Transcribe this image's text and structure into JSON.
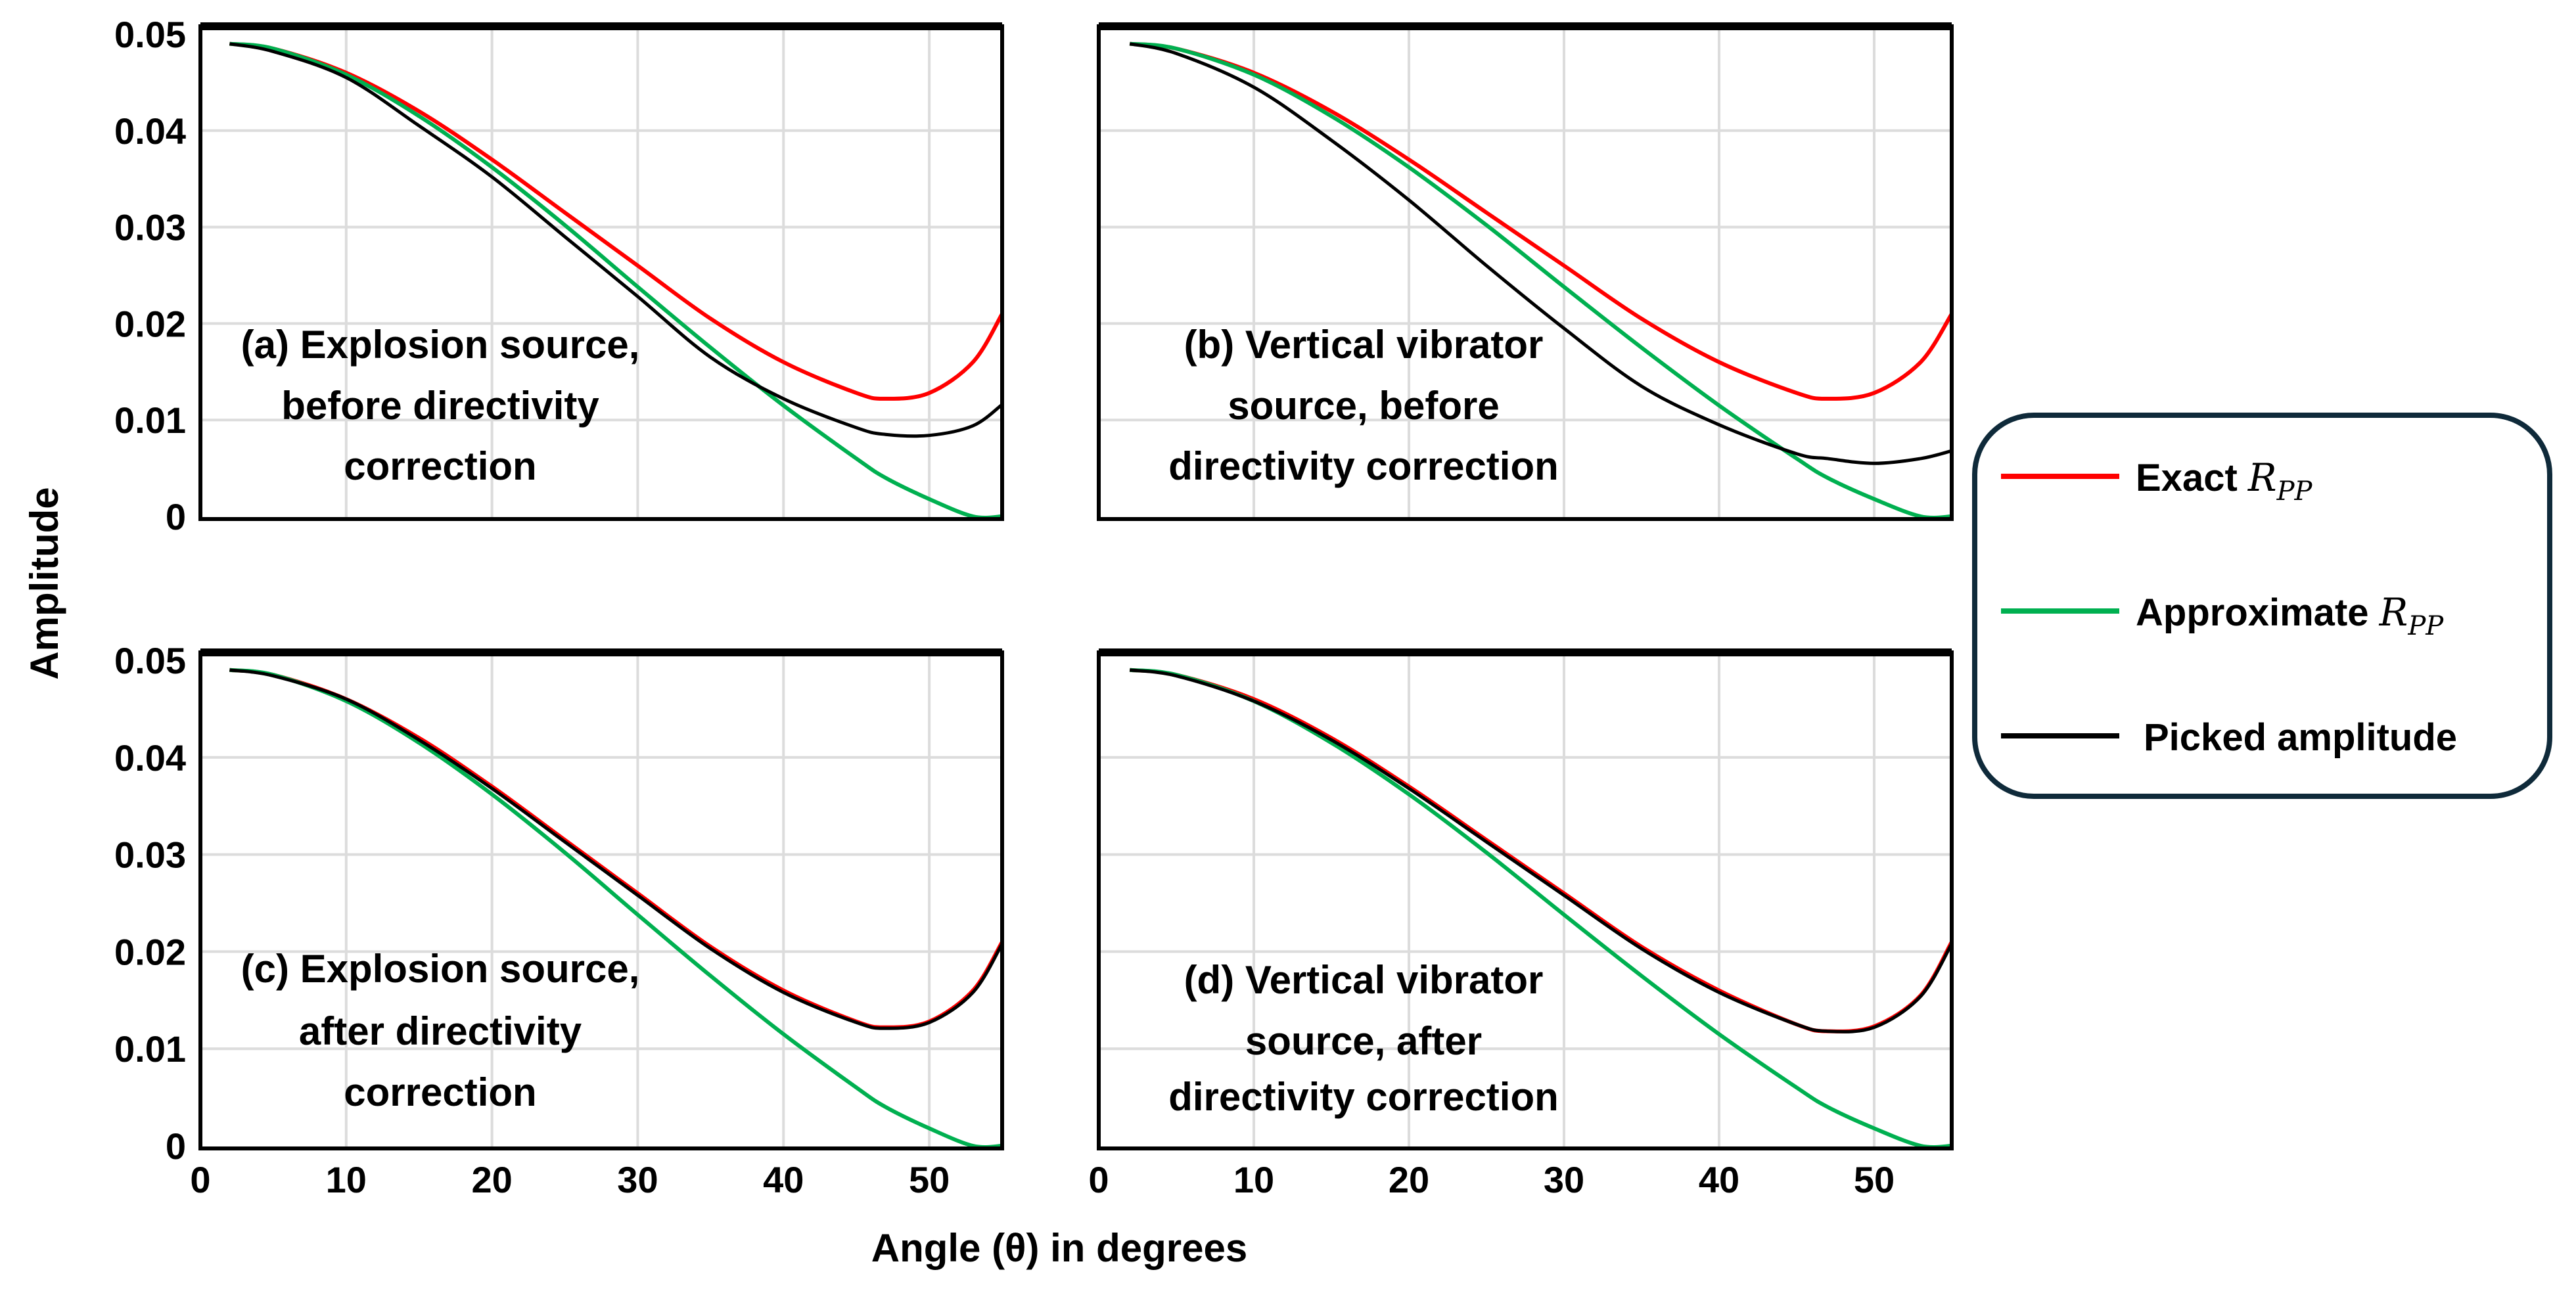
{
  "chart_data": {
    "type": "line",
    "xlabel": "Angle (θ) in degrees",
    "ylabel": "Amplitude",
    "xlim": [
      0,
      55
    ],
    "ylim": [
      0,
      0.05
    ],
    "xticks": [
      "0",
      "10",
      "20",
      "30",
      "40",
      "50"
    ],
    "yticks": [
      "0",
      "0.01",
      "0.02",
      "0.03",
      "0.04",
      "0.05"
    ],
    "grid": true,
    "legend_position": "right",
    "legend": [
      {
        "label": "Exact ",
        "symbol": "R",
        "sub": "PP",
        "color": "#ff0000"
      },
      {
        "label": "Approximate ",
        "symbol": "R",
        "sub": "PP",
        "color": "#00b050"
      },
      {
        "label": "Picked amplitude",
        "symbol": "",
        "sub": "",
        "color": "#000000"
      }
    ],
    "x": [
      2,
      5,
      10,
      15,
      20,
      25,
      30,
      35,
      40,
      45,
      47,
      50,
      53,
      55
    ],
    "panels": [
      {
        "title_lines": [
          "(a) Explosion source,",
          "before directivity",
          "correction"
        ],
        "series": [
          {
            "name": "Exact R_PP",
            "values": [
              0.049,
              0.0485,
              0.046,
              0.042,
              0.037,
              0.0315,
              0.026,
              0.0205,
              0.016,
              0.0128,
              0.0122,
              0.0128,
              0.016,
              0.021
            ]
          },
          {
            "name": "Approximate R_PP",
            "values": [
              0.049,
              0.0485,
              0.0458,
              0.0415,
              0.0362,
              0.0302,
              0.0238,
              0.0175,
              0.0115,
              0.006,
              0.004,
              0.0018,
              0.0,
              0.0
            ]
          },
          {
            "name": "Picked amplitude",
            "values": [
              0.049,
              0.0482,
              0.0455,
              0.0405,
              0.0352,
              0.029,
              0.0228,
              0.0165,
              0.0122,
              0.0092,
              0.0085,
              0.0084,
              0.0094,
              0.0116
            ]
          }
        ]
      },
      {
        "title_lines": [
          "(b) Vertical vibrator",
          "source, before",
          "directivity correction"
        ],
        "series": [
          {
            "name": "Exact R_PP",
            "values": [
              0.049,
              0.0485,
              0.046,
              0.042,
              0.037,
              0.0315,
              0.026,
              0.0205,
              0.016,
              0.0128,
              0.0122,
              0.0128,
              0.016,
              0.021
            ]
          },
          {
            "name": "Approximate R_PP",
            "values": [
              0.049,
              0.0485,
              0.0458,
              0.0415,
              0.0362,
              0.0302,
              0.0238,
              0.0175,
              0.0115,
              0.006,
              0.004,
              0.0018,
              0.0,
              0.0
            ]
          },
          {
            "name": "Picked amplitude",
            "values": [
              0.049,
              0.048,
              0.0445,
              0.039,
              0.0328,
              0.026,
              0.0195,
              0.0135,
              0.0095,
              0.0065,
              0.006,
              0.0055,
              0.006,
              0.0068
            ]
          }
        ]
      },
      {
        "title_lines": [
          "(c) Explosion source,",
          "after directivity",
          "correction"
        ],
        "series": [
          {
            "name": "Exact R_PP",
            "values": [
              0.049,
              0.0485,
              0.046,
              0.042,
              0.037,
              0.0315,
              0.026,
              0.0205,
              0.016,
              0.0128,
              0.0122,
              0.0128,
              0.016,
              0.021
            ]
          },
          {
            "name": "Approximate R_PP",
            "values": [
              0.049,
              0.0485,
              0.0458,
              0.0415,
              0.0362,
              0.0302,
              0.0238,
              0.0175,
              0.0115,
              0.006,
              0.004,
              0.0018,
              0.0,
              0.0
            ]
          },
          {
            "name": "Picked amplitude",
            "values": [
              0.049,
              0.0484,
              0.046,
              0.0418,
              0.0368,
              0.0313,
              0.0258,
              0.0203,
              0.0158,
              0.0127,
              0.0121,
              0.0127,
              0.0158,
              0.0208
            ]
          }
        ]
      },
      {
        "title_lines": [
          "(d) Vertical vibrator",
          "source, after",
          "directivity correction"
        ],
        "series": [
          {
            "name": "Exact R_PP",
            "values": [
              0.049,
              0.0485,
              0.046,
              0.042,
              0.037,
              0.0315,
              0.026,
              0.0205,
              0.016,
              0.0125,
              0.0118,
              0.0123,
              0.0155,
              0.021
            ]
          },
          {
            "name": "Approximate R_PP",
            "values": [
              0.049,
              0.0485,
              0.0458,
              0.0415,
              0.0362,
              0.0302,
              0.0238,
              0.0175,
              0.0115,
              0.006,
              0.004,
              0.0018,
              0.0,
              0.0
            ]
          },
          {
            "name": "Picked amplitude",
            "values": [
              0.049,
              0.0484,
              0.0458,
              0.0418,
              0.0368,
              0.0313,
              0.0258,
              0.0203,
              0.0158,
              0.0125,
              0.0118,
              0.0122,
              0.0154,
              0.0208
            ]
          }
        ]
      }
    ]
  }
}
